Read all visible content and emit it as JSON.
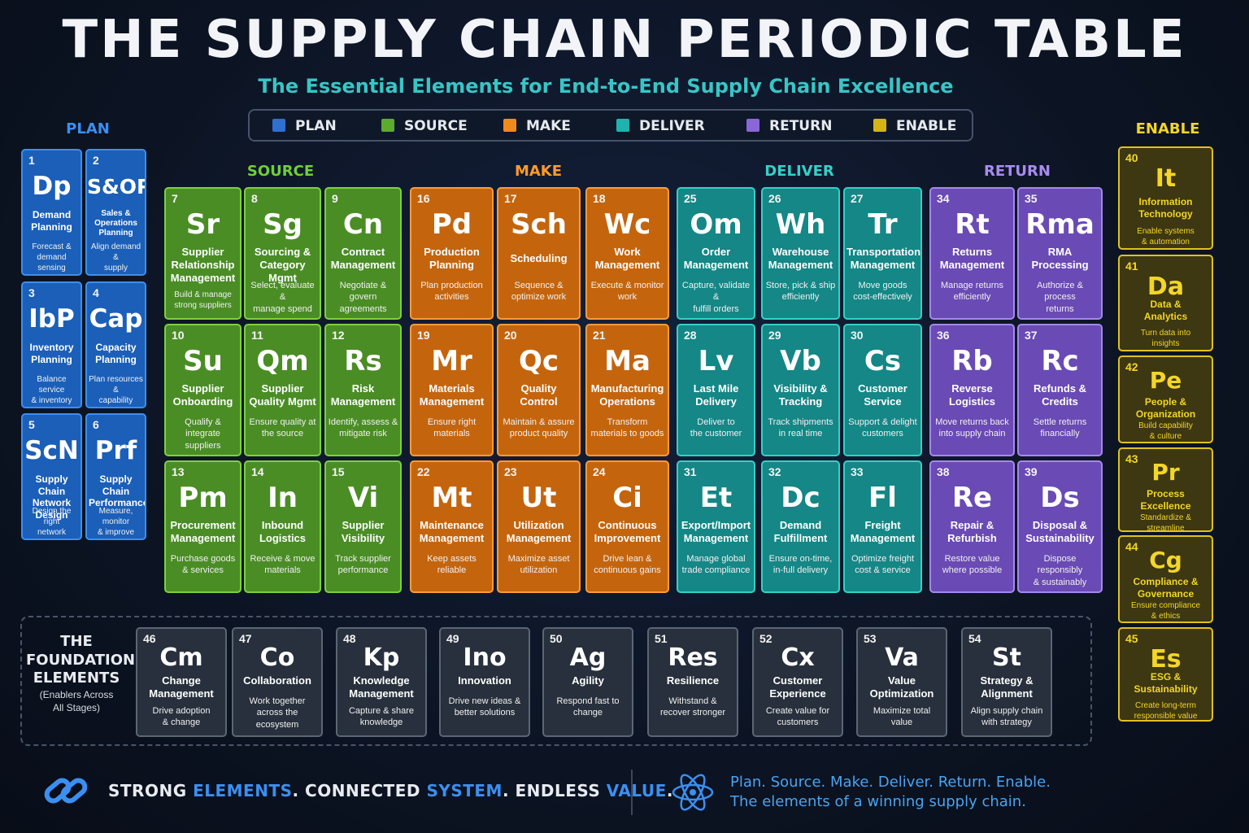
{
  "header": {
    "title": "THE SUPPLY CHAIN PERIODIC TABLE",
    "subtitle": "The Essential Elements for End-to-End Supply Chain Excellence"
  },
  "colors": {
    "plan": "#1b5fb8",
    "source": "#4a8d25",
    "make": "#c4650e",
    "deliver": "#148786",
    "return": "#6a4ab4",
    "enable": "#e0c21c",
    "foundation": "#27303c"
  },
  "legend": [
    {
      "label": "PLAN",
      "color": "#2f6fd0"
    },
    {
      "label": "SOURCE",
      "color": "#5cab2e"
    },
    {
      "label": "MAKE",
      "color": "#f08a1a"
    },
    {
      "label": "DELIVER",
      "color": "#1fb3ad"
    },
    {
      "label": "RETURN",
      "color": "#8a66d8"
    },
    {
      "label": "ENABLE",
      "color": "#d4b414"
    }
  ],
  "groups": {
    "plan": "PLAN",
    "source": "SOURCE",
    "make": "MAKE",
    "deliver": "DELIVER",
    "return": "RETURN",
    "enable": "ENABLE"
  },
  "plan": [
    {
      "num": "1",
      "sym": "Dp",
      "name": "Demand\nPlanning",
      "desc": "Forecast &\ndemand sensing"
    },
    {
      "num": "2",
      "sym": "S&OP",
      "name": "Sales & Operations\nPlanning",
      "desc": "Align demand &\nsupply"
    },
    {
      "num": "3",
      "sym": "IbP",
      "name": "Inventory\nPlanning",
      "desc": "Balance service\n& inventory"
    },
    {
      "num": "4",
      "sym": "Cap",
      "name": "Capacity\nPlanning",
      "desc": "Plan resources &\ncapability"
    },
    {
      "num": "5",
      "sym": "ScN",
      "name": "Supply Chain\nNetwork Design",
      "desc": "Design the right\nnetwork"
    },
    {
      "num": "6",
      "sym": "Prf",
      "name": "Supply Chain\nPerformance",
      "desc": "Measure, monitor\n& improve"
    }
  ],
  "source": [
    {
      "num": "7",
      "sym": "Sr",
      "name": "Supplier\nRelationship\nManagement",
      "desc": "Build & manage\nstrong suppliers"
    },
    {
      "num": "8",
      "sym": "Sg",
      "name": "Sourcing &\nCategory Mgmt",
      "desc": "Select, evaluate &\nmanage spend"
    },
    {
      "num": "9",
      "sym": "Cn",
      "name": "Contract\nManagement",
      "desc": "Negotiate & govern\nagreements"
    },
    {
      "num": "10",
      "sym": "Su",
      "name": "Supplier\nOnboarding",
      "desc": "Qualify & integrate\nsuppliers"
    },
    {
      "num": "11",
      "sym": "Qm",
      "name": "Supplier\nQuality Mgmt",
      "desc": "Ensure quality at\nthe source"
    },
    {
      "num": "12",
      "sym": "Rs",
      "name": "Risk\nManagement",
      "desc": "Identify, assess &\nmitigate risk"
    },
    {
      "num": "13",
      "sym": "Pm",
      "name": "Procurement\nManagement",
      "desc": "Purchase goods\n& services"
    },
    {
      "num": "14",
      "sym": "In",
      "name": "Inbound\nLogistics",
      "desc": "Receive & move\nmaterials"
    },
    {
      "num": "15",
      "sym": "Vi",
      "name": "Supplier\nVisibility",
      "desc": "Track supplier\nperformance"
    }
  ],
  "make": [
    {
      "num": "16",
      "sym": "Pd",
      "name": "Production\nPlanning",
      "desc": "Plan production\nactivities"
    },
    {
      "num": "17",
      "sym": "Sch",
      "name": "Scheduling",
      "desc": "Sequence &\noptimize work"
    },
    {
      "num": "18",
      "sym": "Wc",
      "name": "Work\nManagement",
      "desc": "Execute & monitor\nwork"
    },
    {
      "num": "19",
      "sym": "Mr",
      "name": "Materials\nManagement",
      "desc": "Ensure right\nmaterials"
    },
    {
      "num": "20",
      "sym": "Qc",
      "name": "Quality\nControl",
      "desc": "Maintain & assure\nproduct quality"
    },
    {
      "num": "21",
      "sym": "Ma",
      "name": "Manufacturing\nOperations",
      "desc": "Transform\nmaterials to goods"
    },
    {
      "num": "22",
      "sym": "Mt",
      "name": "Maintenance\nManagement",
      "desc": "Keep assets\nreliable"
    },
    {
      "num": "23",
      "sym": "Ut",
      "name": "Utilization\nManagement",
      "desc": "Maximize asset\nutilization"
    },
    {
      "num": "24",
      "sym": "Ci",
      "name": "Continuous\nImprovement",
      "desc": "Drive lean &\ncontinuous gains"
    }
  ],
  "deliver": [
    {
      "num": "25",
      "sym": "Om",
      "name": "Order\nManagement",
      "desc": "Capture, validate &\nfulfill orders"
    },
    {
      "num": "26",
      "sym": "Wh",
      "name": "Warehouse\nManagement",
      "desc": "Store, pick & ship\nefficiently"
    },
    {
      "num": "27",
      "sym": "Tr",
      "name": "Transportation\nManagement",
      "desc": "Move goods\ncost-effectively"
    },
    {
      "num": "28",
      "sym": "Lv",
      "name": "Last Mile\nDelivery",
      "desc": "Deliver to\nthe customer"
    },
    {
      "num": "29",
      "sym": "Vb",
      "name": "Visibility &\nTracking",
      "desc": "Track shipments\nin real time"
    },
    {
      "num": "30",
      "sym": "Cs",
      "name": "Customer\nService",
      "desc": "Support & delight\ncustomers"
    },
    {
      "num": "31",
      "sym": "Et",
      "name": "Export/Import\nManagement",
      "desc": "Manage global\ntrade compliance"
    },
    {
      "num": "32",
      "sym": "Dc",
      "name": "Demand\nFulfillment",
      "desc": "Ensure on-time,\nin-full delivery"
    },
    {
      "num": "33",
      "sym": "Fl",
      "name": "Freight\nManagement",
      "desc": "Optimize freight\ncost & service"
    }
  ],
  "return": [
    {
      "num": "34",
      "sym": "Rt",
      "name": "Returns\nManagement",
      "desc": "Manage returns\nefficiently"
    },
    {
      "num": "35",
      "sym": "Rma",
      "name": "RMA\nProcessing",
      "desc": "Authorize & process\nreturns"
    },
    {
      "num": "36",
      "sym": "Rb",
      "name": "Reverse\nLogistics",
      "desc": "Move returns back\ninto supply chain"
    },
    {
      "num": "37",
      "sym": "Rc",
      "name": "Refunds &\nCredits",
      "desc": "Settle returns\nfinancially"
    },
    {
      "num": "38",
      "sym": "Re",
      "name": "Repair &\nRefurbish",
      "desc": "Restore value\nwhere possible"
    },
    {
      "num": "39",
      "sym": "Ds",
      "name": "Disposal &\nSustainability",
      "desc": "Dispose responsibly\n& sustainably"
    }
  ],
  "enable": [
    {
      "num": "40",
      "sym": "It",
      "name": "Information\nTechnology",
      "desc": "Enable systems\n& automation"
    },
    {
      "num": "41",
      "sym": "Da",
      "name": "Data &\nAnalytics",
      "desc": "Turn data into\ninsights"
    },
    {
      "num": "42",
      "sym": "Pe",
      "name": "People &\nOrganization",
      "desc": "Build capability\n& culture"
    },
    {
      "num": "43",
      "sym": "Pr",
      "name": "Process\nExcellence",
      "desc": "Standardize &\nstreamline"
    },
    {
      "num": "44",
      "sym": "Cg",
      "name": "Compliance &\nGovernance",
      "desc": "Ensure compliance\n& ethics"
    },
    {
      "num": "45",
      "sym": "Es",
      "name": "ESG &\nSustainability",
      "desc": "Create long-term\nresponsible value"
    }
  ],
  "foundation": {
    "title": "THE\nFOUNDATION\nELEMENTS",
    "subtitle": "(Enablers Across\nAll Stages)",
    "items": [
      {
        "num": "46",
        "sym": "Cm",
        "name": "Change\nManagement",
        "desc": "Drive adoption\n& change"
      },
      {
        "num": "47",
        "sym": "Co",
        "name": "Collaboration",
        "desc": "Work together\nacross the\necosystem"
      },
      {
        "num": "48",
        "sym": "Kp",
        "name": "Knowledge\nManagement",
        "desc": "Capture & share\nknowledge"
      },
      {
        "num": "49",
        "sym": "Ino",
        "name": "Innovation",
        "desc": "Drive new ideas &\nbetter solutions"
      },
      {
        "num": "50",
        "sym": "Ag",
        "name": "Agility",
        "desc": "Respond fast to\nchange"
      },
      {
        "num": "51",
        "sym": "Res",
        "name": "Resilience",
        "desc": "Withstand &\nrecover stronger"
      },
      {
        "num": "52",
        "sym": "Cx",
        "name": "Customer\nExperience",
        "desc": "Create value for\ncustomers"
      },
      {
        "num": "53",
        "sym": "Va",
        "name": "Value\nOptimization",
        "desc": "Maximize total\nvalue"
      },
      {
        "num": "54",
        "sym": "St",
        "name": "Strategy &\nAlignment",
        "desc": "Align supply chain\nwith strategy"
      }
    ]
  },
  "footer": {
    "left_parts": [
      "STRONG ",
      "ELEMENTS",
      ". CONNECTED ",
      "SYSTEM",
      ". ENDLESS ",
      "VALUE",
      "."
    ],
    "right_line1": "Plan. Source. Make. Deliver. Return. Enable.",
    "right_line2": "The elements of a winning supply chain.",
    "left_icon": "chain-link-icon",
    "right_icon": "atom-icon"
  }
}
